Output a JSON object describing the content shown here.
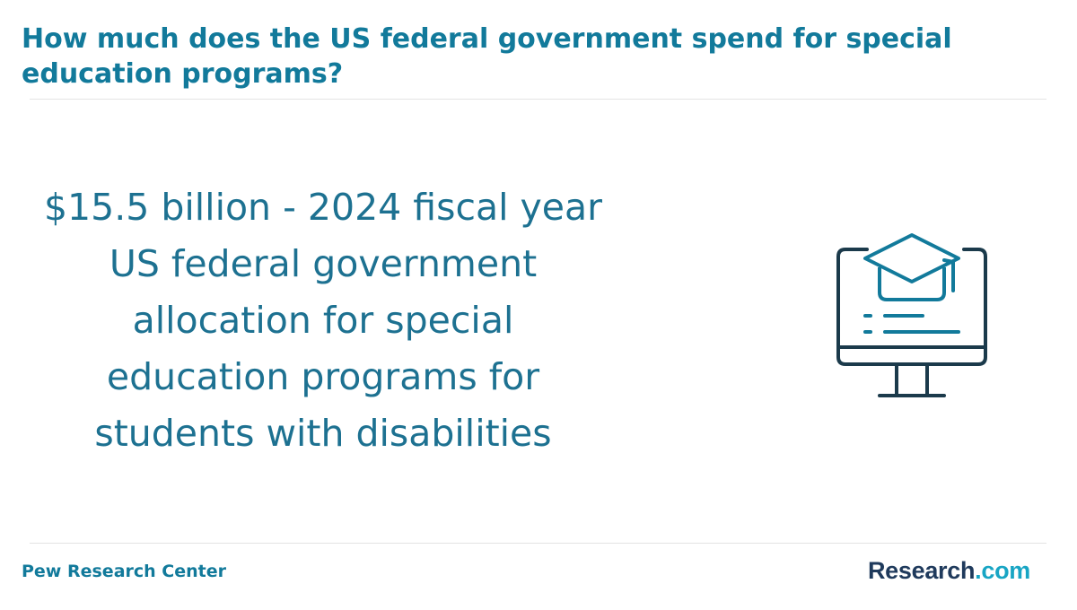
{
  "header": {
    "title": "How much does the US federal government spend for special education programs?"
  },
  "main": {
    "fact": "$15.5 billion - 2024 fiscal year US federal government allocation for special education programs for students with disabilities",
    "illustration_icon": "computer-monitor-graduation-cap-icon"
  },
  "footer": {
    "source": "Pew Research Center",
    "brand_main": "Research",
    "brand_tld": ".com"
  },
  "colors": {
    "title": "#127a9b",
    "fact_text": "#1d7191",
    "icon_dark": "#1b3a4b",
    "icon_accent": "#127a9b",
    "brand_dark": "#1f3a5c",
    "brand_accent": "#18a5c4"
  }
}
